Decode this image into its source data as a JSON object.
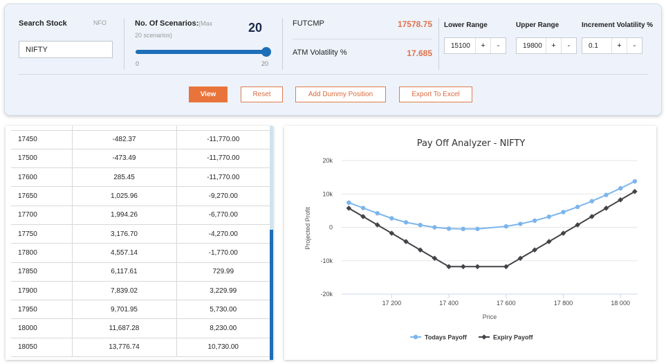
{
  "search": {
    "label": "Search Stock",
    "exchange": "NFO",
    "value": "NIFTY"
  },
  "scenarios": {
    "label": "No. Of Scenarios:",
    "hint_part1": "(Max",
    "hint_part2": "20 scenarios)",
    "count": "20",
    "slider_min": "0",
    "slider_max": "20",
    "slider_fraction": 1.0
  },
  "market": {
    "futcmp_label": "FUTCMP",
    "futcmp_value": "17578.75",
    "atm_label": "ATM Volatility %",
    "atm_value": "17.685"
  },
  "ranges": {
    "lower_label": "Lower Range",
    "lower_value": "15100",
    "upper_label": "Upper Range",
    "upper_value": "19800",
    "increment_label": "Increment Volatility %",
    "increment_value": "0.1",
    "plus": "+",
    "minus": "-"
  },
  "actions": {
    "view": "View",
    "reset": "Reset",
    "add_dummy": "Add Dummy Position",
    "export": "Export To Excel"
  },
  "table": {
    "rows": [
      [
        "17450",
        "-482.37",
        "-11,770.00"
      ],
      [
        "17500",
        "-473.49",
        "-11,770.00"
      ],
      [
        "17600",
        "285.45",
        "-11,770.00"
      ],
      [
        "17650",
        "1,025.96",
        "-9,270.00"
      ],
      [
        "17700",
        "1,994.26",
        "-6,770.00"
      ],
      [
        "17750",
        "3,176.70",
        "-4,270.00"
      ],
      [
        "17800",
        "4,557.14",
        "-1,770.00"
      ],
      [
        "17850",
        "6,117.61",
        "729.99"
      ],
      [
        "17900",
        "7,839.02",
        "3,229.99"
      ],
      [
        "17950",
        "9,701.95",
        "5,730.00"
      ],
      [
        "18000",
        "11,687.28",
        "8,230.00"
      ],
      [
        "18050",
        "13,776.74",
        "10,730.00"
      ]
    ]
  },
  "chart_data": {
    "type": "line",
    "title": "Pay Off Analyzer - NIFTY",
    "xlabel": "Price",
    "ylabel": "Projected Profit",
    "xlim": [
      17025,
      18060
    ],
    "ylim": [
      -20000,
      20000
    ],
    "x_ticks": [
      17200,
      17400,
      17600,
      17800,
      18000
    ],
    "x_tick_labels": [
      "17 200",
      "17 400",
      "17 600",
      "17 800",
      "18 000"
    ],
    "y_ticks": [
      20000,
      10000,
      0,
      -10000,
      -20000
    ],
    "y_tick_labels": [
      "20k",
      "10k",
      "0",
      "-10k",
      "-20k"
    ],
    "legend_position": "bottom",
    "x": [
      17050,
      17100,
      17150,
      17200,
      17250,
      17300,
      17350,
      17400,
      17450,
      17500,
      17600,
      17650,
      17700,
      17750,
      17800,
      17850,
      17900,
      17950,
      18000,
      18050
    ],
    "series": [
      {
        "name": "Todays Payoff",
        "color": "#7cb5ec",
        "marker": "circle",
        "values": [
          7400,
          5800,
          4200,
          2700,
          1500,
          700,
          0,
          -400,
          -482,
          -473,
          285,
          1026,
          1994,
          3177,
          4557,
          6118,
          7839,
          9702,
          11687,
          13777
        ]
      },
      {
        "name": "Expiry Payoff",
        "color": "#434348",
        "marker": "diamond",
        "values": [
          5730,
          3230,
          730,
          -1770,
          -4270,
          -6770,
          -9270,
          -11770,
          -11770,
          -11770,
          -11770,
          -9270,
          -6770,
          -4270,
          -1770,
          730,
          3230,
          5730,
          8230,
          10730
        ]
      }
    ]
  }
}
